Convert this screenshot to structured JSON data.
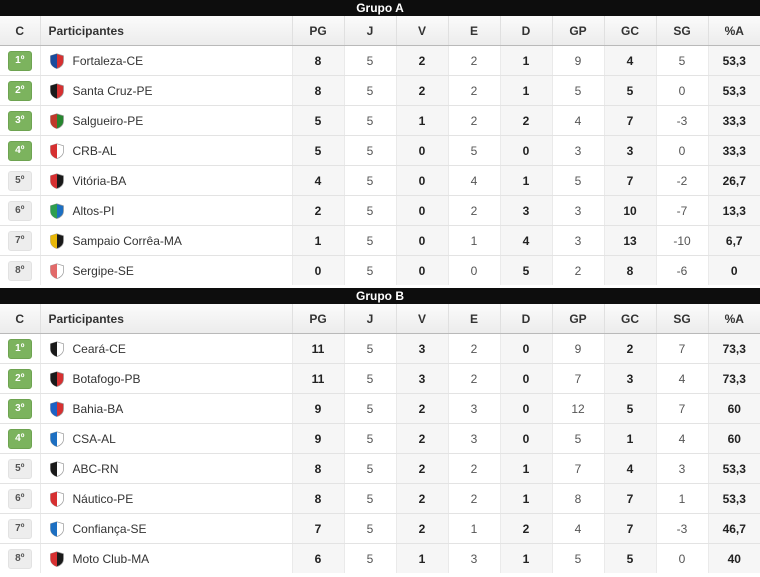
{
  "theme": {
    "group_bar_bg": "#0d0d0d",
    "group_bar_text": "#ffffff",
    "qualify_badge_bg": "#7cb35e",
    "qualify_badge_border": "#6ea351",
    "qualify_badge_text": "#ffffff",
    "normal_badge_bg": "#ededed",
    "normal_badge_text": "#555555",
    "shaded_column_bg": "#f6f6f6"
  },
  "groups": [
    {
      "title": "Grupo A",
      "columns": [
        "C",
        "Participantes",
        "PG",
        "J",
        "V",
        "E",
        "D",
        "GP",
        "GC",
        "SG",
        "%A"
      ],
      "rows": [
        {
          "pos": "1º",
          "name": "Fortaleza-CE",
          "qualified": true,
          "crest_colors": [
            "#1b4c9c",
            "#d63031"
          ],
          "stats": [
            "8",
            "5",
            "2",
            "2",
            "1",
            "9",
            "4",
            "5",
            "53,3"
          ]
        },
        {
          "pos": "2º",
          "name": "Santa Cruz-PE",
          "qualified": true,
          "crest_colors": [
            "#1a1a1a",
            "#d63031"
          ],
          "stats": [
            "8",
            "5",
            "2",
            "2",
            "1",
            "5",
            "5",
            "0",
            "53,3"
          ]
        },
        {
          "pos": "3º",
          "name": "Salgueiro-PE",
          "qualified": true,
          "crest_colors": [
            "#c0392b",
            "#27862f"
          ],
          "stats": [
            "5",
            "5",
            "1",
            "2",
            "2",
            "4",
            "7",
            "-3",
            "33,3"
          ]
        },
        {
          "pos": "4º",
          "name": "CRB-AL",
          "qualified": true,
          "crest_colors": [
            "#d63031",
            "#ffffff"
          ],
          "stats": [
            "5",
            "5",
            "0",
            "5",
            "0",
            "3",
            "3",
            "0",
            "33,3"
          ]
        },
        {
          "pos": "5º",
          "name": "Vitória-BA",
          "qualified": false,
          "crest_colors": [
            "#d63031",
            "#1a1a1a"
          ],
          "stats": [
            "4",
            "5",
            "0",
            "4",
            "1",
            "5",
            "7",
            "-2",
            "26,7"
          ]
        },
        {
          "pos": "6º",
          "name": "Altos-PI",
          "qualified": false,
          "crest_colors": [
            "#2e9e4f",
            "#1c6fc2"
          ],
          "stats": [
            "2",
            "5",
            "0",
            "2",
            "3",
            "3",
            "10",
            "-7",
            "13,3"
          ]
        },
        {
          "pos": "7º",
          "name": "Sampaio Corrêa-MA",
          "qualified": false,
          "crest_colors": [
            "#e8b708",
            "#1a1a1a"
          ],
          "stats": [
            "1",
            "5",
            "0",
            "1",
            "4",
            "3",
            "13",
            "-10",
            "6,7"
          ]
        },
        {
          "pos": "8º",
          "name": "Sergipe-SE",
          "qualified": false,
          "crest_colors": [
            "#e26a6a",
            "#ffffff"
          ],
          "stats": [
            "0",
            "5",
            "0",
            "0",
            "5",
            "2",
            "8",
            "-6",
            "0"
          ]
        }
      ]
    },
    {
      "title": "Grupo B",
      "columns": [
        "C",
        "Participantes",
        "PG",
        "J",
        "V",
        "E",
        "D",
        "GP",
        "GC",
        "SG",
        "%A"
      ],
      "rows": [
        {
          "pos": "1º",
          "name": "Ceará-CE",
          "qualified": true,
          "crest_colors": [
            "#1a1a1a",
            "#ffffff"
          ],
          "stats": [
            "11",
            "5",
            "3",
            "2",
            "0",
            "9",
            "2",
            "7",
            "73,3"
          ]
        },
        {
          "pos": "2º",
          "name": "Botafogo-PB",
          "qualified": true,
          "crest_colors": [
            "#1a1a1a",
            "#d63031"
          ],
          "stats": [
            "11",
            "5",
            "3",
            "2",
            "0",
            "7",
            "3",
            "4",
            "73,3"
          ]
        },
        {
          "pos": "3º",
          "name": "Bahia-BA",
          "qualified": true,
          "crest_colors": [
            "#1c62c5",
            "#d63031"
          ],
          "stats": [
            "9",
            "5",
            "2",
            "3",
            "0",
            "12",
            "5",
            "7",
            "60"
          ]
        },
        {
          "pos": "4º",
          "name": "CSA-AL",
          "qualified": true,
          "crest_colors": [
            "#1c6fc2",
            "#ffffff"
          ],
          "stats": [
            "9",
            "5",
            "2",
            "3",
            "0",
            "5",
            "1",
            "4",
            "60"
          ]
        },
        {
          "pos": "5º",
          "name": "ABC-RN",
          "qualified": false,
          "crest_colors": [
            "#1a1a1a",
            "#ffffff"
          ],
          "stats": [
            "8",
            "5",
            "2",
            "2",
            "1",
            "7",
            "4",
            "3",
            "53,3"
          ]
        },
        {
          "pos": "6º",
          "name": "Náutico-PE",
          "qualified": false,
          "crest_colors": [
            "#d63031",
            "#ffffff"
          ],
          "stats": [
            "8",
            "5",
            "2",
            "2",
            "1",
            "8",
            "7",
            "1",
            "53,3"
          ]
        },
        {
          "pos": "7º",
          "name": "Confiança-SE",
          "qualified": false,
          "crest_colors": [
            "#1c6fc2",
            "#ffffff"
          ],
          "stats": [
            "7",
            "5",
            "2",
            "1",
            "2",
            "4",
            "7",
            "-3",
            "46,7"
          ]
        },
        {
          "pos": "8º",
          "name": "Moto Club-MA",
          "qualified": false,
          "crest_colors": [
            "#d63031",
            "#1a1a1a"
          ],
          "stats": [
            "6",
            "5",
            "1",
            "3",
            "1",
            "5",
            "5",
            "0",
            "40"
          ]
        }
      ]
    }
  ]
}
